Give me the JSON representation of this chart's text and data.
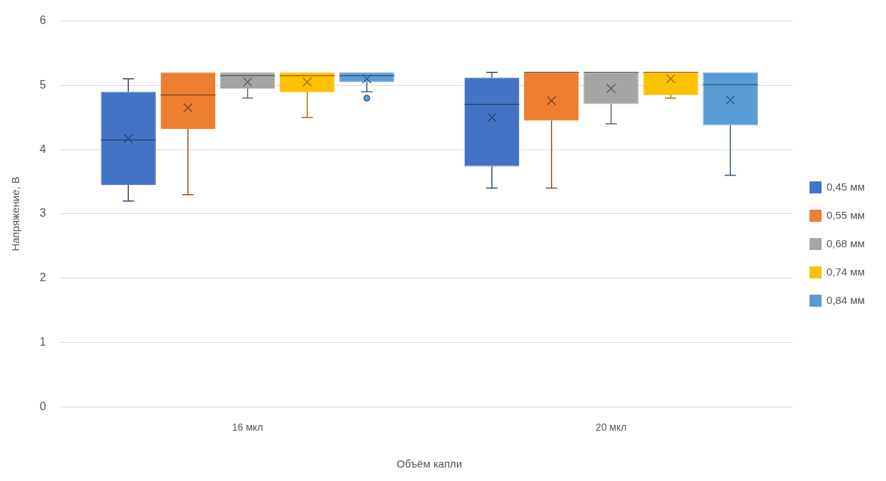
{
  "chart_data": {
    "type": "box",
    "xlabel": "Объём капли",
    "ylabel": "Напряжение, В",
    "categories": [
      "16 мкл",
      "20 мкл"
    ],
    "ylim": [
      0,
      6
    ],
    "yticks": [
      0,
      1,
      2,
      3,
      4,
      5,
      6
    ],
    "grid": "y",
    "legend": "right",
    "marker": "cross",
    "series": [
      {
        "name": "0,45 мм",
        "color": "#4472c4",
        "boxes": [
          {
            "low": 3.2,
            "q1": 3.45,
            "median": 4.15,
            "q3": 4.9,
            "high": 5.1,
            "mean": 4.17
          },
          {
            "low": 3.4,
            "q1": 3.74,
            "median": 4.7,
            "q3": 5.12,
            "high": 5.2,
            "mean": 4.5
          }
        ]
      },
      {
        "name": "0,55 мм",
        "color": "#ed7d31",
        "boxes": [
          {
            "low": 3.3,
            "q1": 4.32,
            "median": 4.85,
            "q3": 5.2,
            "high": 5.2,
            "mean": 4.65
          },
          {
            "low": 3.4,
            "q1": 4.45,
            "median": 5.2,
            "q3": 5.2,
            "high": 5.2,
            "mean": 4.76
          }
        ]
      },
      {
        "name": "0,68 мм",
        "color": "#a5a5a5",
        "boxes": [
          {
            "low": 4.8,
            "q1": 4.95,
            "median": 5.15,
            "q3": 5.2,
            "high": 5.2,
            "mean": 5.05
          },
          {
            "low": 4.4,
            "q1": 4.71,
            "median": 5.2,
            "q3": 5.2,
            "high": 5.2,
            "mean": 4.95
          }
        ]
      },
      {
        "name": "0,74 мм",
        "color": "#ffc000",
        "boxes": [
          {
            "low": 4.5,
            "q1": 4.89,
            "median": 5.15,
            "q3": 5.2,
            "high": 5.2,
            "mean": 5.05
          },
          {
            "low": 4.8,
            "q1": 4.85,
            "median": 5.2,
            "q3": 5.2,
            "high": 5.2,
            "mean": 5.1
          }
        ]
      },
      {
        "name": "0,84 мм",
        "color": "#5b9bd5",
        "boxes": [
          {
            "low": 4.9,
            "q1": 5.05,
            "median": 5.15,
            "q3": 5.2,
            "high": 5.2,
            "mean": 5.1,
            "outliers": [
              4.8
            ]
          },
          {
            "low": 3.6,
            "q1": 4.38,
            "median": 5.01,
            "q3": 5.2,
            "high": 5.2,
            "mean": 4.77
          }
        ]
      }
    ]
  }
}
